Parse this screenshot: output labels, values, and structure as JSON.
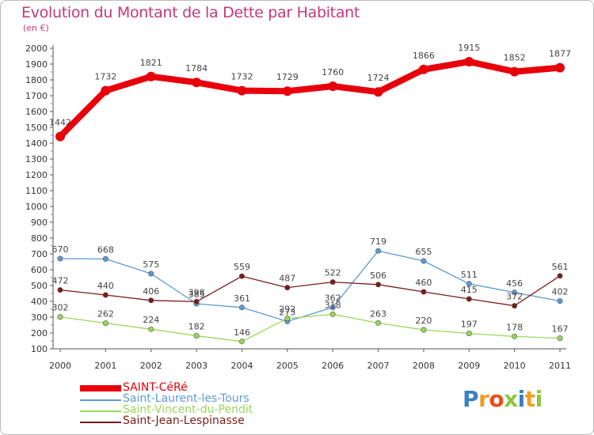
{
  "title": "Evolution du Montant de la Dette par Habitant",
  "subtitle": "(en €)",
  "logo": {
    "text": "Proxiti",
    "colors": [
      "#3a7fc4",
      "#f39c23",
      "#e94e1b",
      "#8cc63f",
      "#3a7fc4",
      "#f39c23",
      "#8cc63f"
    ]
  },
  "chart_data": {
    "type": "line",
    "categories": [
      "2000",
      "2001",
      "2002",
      "2003",
      "2004",
      "2005",
      "2006",
      "2007",
      "2008",
      "2009",
      "2010",
      "2011"
    ],
    "y_ticks": [
      100,
      200,
      300,
      400,
      500,
      600,
      700,
      800,
      900,
      1000,
      1100,
      1200,
      1300,
      1400,
      1500,
      1600,
      1700,
      1800,
      1900,
      2000
    ],
    "ylim": [
      100,
      2000
    ],
    "grid": false,
    "legend_position": "bottom-left",
    "series": [
      {
        "name": "SAINT-CéRé",
        "color": "#e8000b",
        "values": [
          1442,
          1732,
          1821,
          1784,
          1732,
          1729,
          1760,
          1724,
          1866,
          1915,
          1852,
          1877
        ],
        "labels": [
          "1442",
          "1732",
          "1821",
          "1784",
          "1732",
          "1729",
          "1760",
          "1724",
          "1866",
          "1915",
          "1852",
          "1877"
        ]
      },
      {
        "name": "Saint-Laurent-les-Tours",
        "color": "#5b9bd5",
        "values": [
          670,
          668,
          575,
          385,
          361,
          273,
          362,
          719,
          655,
          511,
          456,
          402
        ],
        "labels": [
          "670",
          "668",
          "575",
          "385",
          "361",
          "273",
          "362",
          "719",
          "655",
          "511",
          "456",
          "402"
        ]
      },
      {
        "name": "Saint-Vincent-du-Pendit",
        "color": "#9bd65b",
        "values": [
          302,
          262,
          224,
          182,
          146,
          292,
          318,
          263,
          220,
          197,
          178,
          167
        ],
        "labels": [
          "302",
          "262",
          "224",
          "182",
          "146",
          "292",
          "318",
          "263",
          "220",
          "197",
          "178",
          "167"
        ]
      },
      {
        "name": "Saint-Jean-Lespinasse",
        "color": "#7b1c1c",
        "values": [
          472,
          440,
          406,
          398,
          559,
          487,
          522,
          506,
          460,
          415,
          372,
          561
        ],
        "labels": [
          "472",
          "440",
          "406",
          "398",
          "559",
          "487",
          "522",
          "506",
          "460",
          "415",
          "372",
          "561"
        ]
      }
    ]
  }
}
